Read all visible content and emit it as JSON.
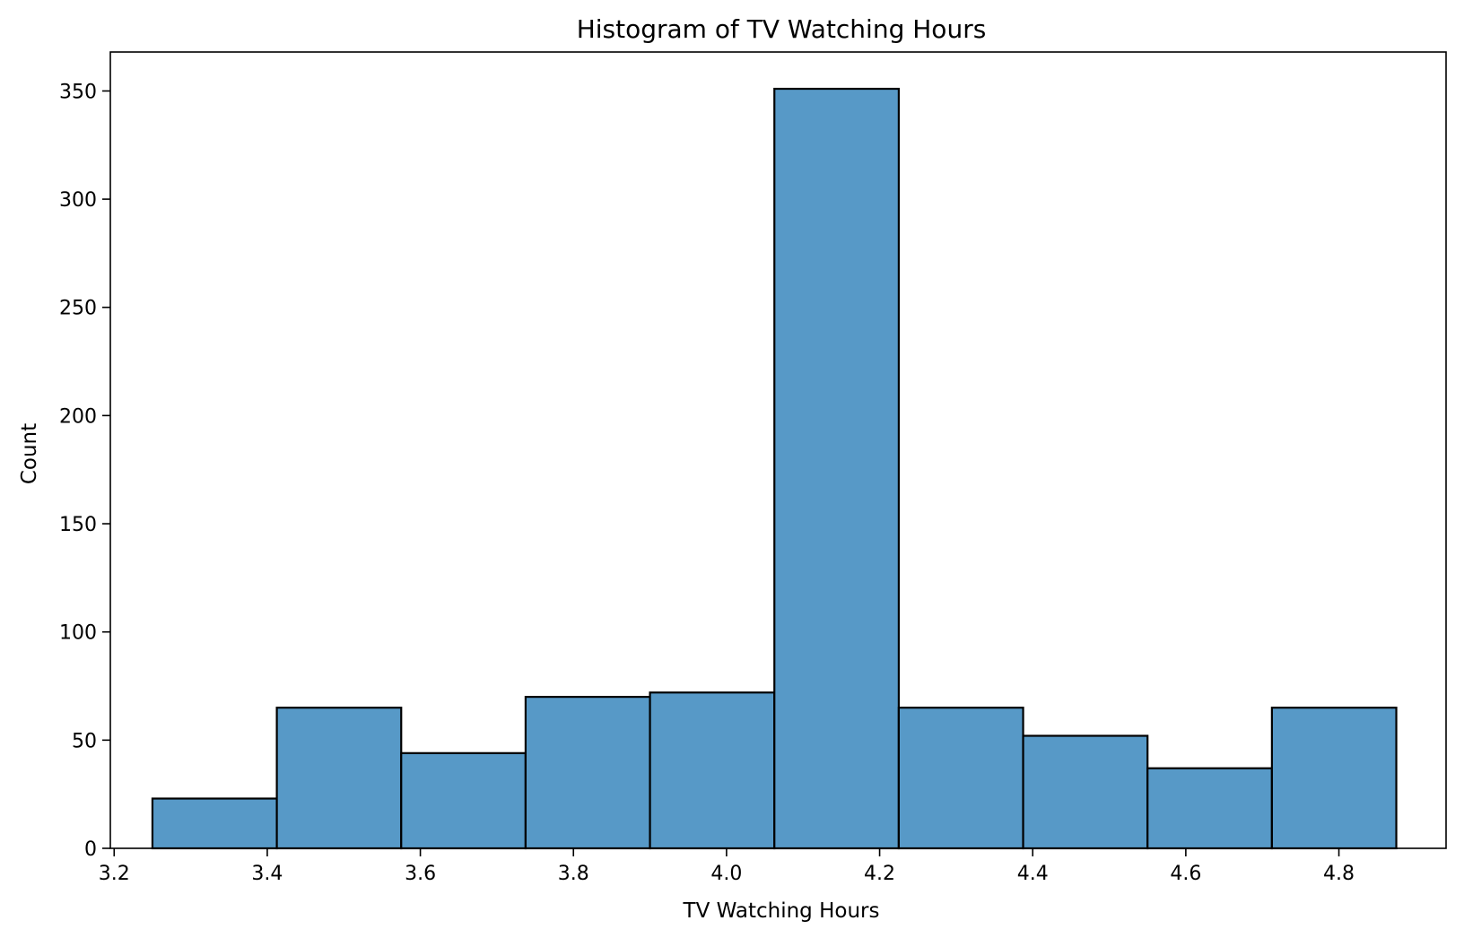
{
  "chart_data": {
    "type": "bar",
    "title": "Histogram of TV Watching Hours",
    "xlabel": "TV Watching Hours",
    "ylabel": "Count",
    "xlim": [
      3.195,
      4.94
    ],
    "ylim": [
      0,
      368
    ],
    "bin_edges": [
      3.25,
      3.4125,
      3.575,
      3.7375,
      3.9,
      4.0625,
      4.225,
      4.3875,
      4.55,
      4.7125,
      4.875
    ],
    "values": [
      23,
      65,
      44,
      70,
      72,
      351,
      65,
      52,
      37,
      65
    ],
    "x_ticks": [
      3.2,
      3.4,
      3.6,
      3.8,
      4.0,
      4.2,
      4.4,
      4.6,
      4.8
    ],
    "x_tick_labels": [
      "3.2",
      "3.4",
      "3.6",
      "3.8",
      "4.0",
      "4.2",
      "4.4",
      "4.6",
      "4.8"
    ],
    "y_ticks": [
      0,
      50,
      100,
      150,
      200,
      250,
      300,
      350
    ],
    "y_tick_labels": [
      "0",
      "50",
      "100",
      "150",
      "200",
      "250",
      "300",
      "350"
    ],
    "bar_color": "#5799c7",
    "edge_color": "#000000",
    "grid": false,
    "legend": "none"
  }
}
